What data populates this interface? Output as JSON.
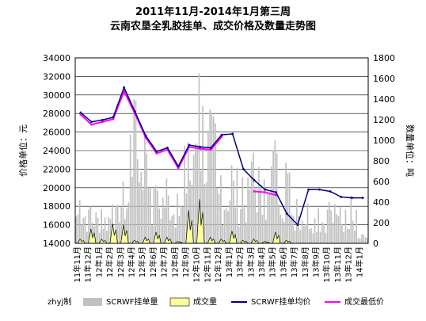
{
  "chart_data": {
    "type": "line",
    "title": "2011年11月-2014年1月第三周",
    "subtitle": "云南农垦全乳胶挂单、成交价格及数量走势图",
    "ylabel": "价格单位：元",
    "y2label": "数量单位：吨",
    "ylim": [
      14000,
      34000
    ],
    "yticks": [
      14000,
      16000,
      18000,
      20000,
      22000,
      24000,
      26000,
      28000,
      30000,
      32000,
      34000
    ],
    "y2lim": [
      0,
      1800
    ],
    "y2ticks": [
      0,
      200,
      400,
      600,
      800,
      1000,
      1200,
      1400,
      1600,
      1800
    ],
    "categories": [
      "11年11月",
      "11年12月",
      "12年1月",
      "12年2月",
      "12年3月",
      "12年4月",
      "12年5月",
      "12年6月",
      "12年7月",
      "12年8月",
      "12年9月",
      "12年10月",
      "12年11月",
      "12年12月",
      "13年1月",
      "13年2月",
      "13年3月",
      "13年4月",
      "13年5月",
      "13年6月",
      "13年7月",
      "13年8月",
      "13年9月",
      "13年10月",
      "13年11月",
      "13年12月",
      "14年1月"
    ],
    "grid": true,
    "legend_position": "bottom",
    "watermark": "zhyj制",
    "series": [
      {
        "name": "SCRWF挂单量",
        "axis": "right",
        "kind": "bar",
        "color": "#c0c0c0",
        "monthly_peak": [
          420,
          360,
          330,
          380,
          600,
          1400,
          1050,
          560,
          630,
          480,
          980,
          1650,
          1300,
          660,
          760,
          640,
          880,
          620,
          1000,
          780,
          430,
          390,
          340,
          400,
          360,
          460,
          90
        ]
      },
      {
        "name": "成交量",
        "axis": "right",
        "kind": "area",
        "color": "#ffff99",
        "monthly_peak": [
          40,
          140,
          40,
          190,
          180,
          30,
          60,
          110,
          60,
          20,
          320,
          430,
          60,
          40,
          120,
          30,
          40,
          20,
          110,
          30,
          0,
          0,
          0,
          0,
          0,
          0,
          0
        ]
      },
      {
        "name": "SCRWF挂单均价",
        "axis": "left",
        "kind": "line",
        "color": "#000080",
        "values": [
          28100,
          27100,
          27300,
          27600,
          30800,
          28200,
          25600,
          23900,
          24300,
          22300,
          24600,
          24400,
          24300,
          25700,
          25800,
          22000,
          20800,
          19800,
          19500,
          17200,
          16000,
          19800,
          19800,
          19600,
          19000,
          18900,
          18900
        ]
      },
      {
        "name": "成交最低价",
        "axis": "left",
        "kind": "line",
        "color": "#ff00ff",
        "values": [
          27900,
          26800,
          27100,
          27400,
          30400,
          28000,
          25400,
          23700,
          24100,
          22100,
          24400,
          24200,
          24100,
          25500,
          null,
          null,
          19600,
          19500,
          19200,
          null,
          null,
          null,
          null,
          null,
          null,
          null,
          null
        ]
      }
    ]
  }
}
